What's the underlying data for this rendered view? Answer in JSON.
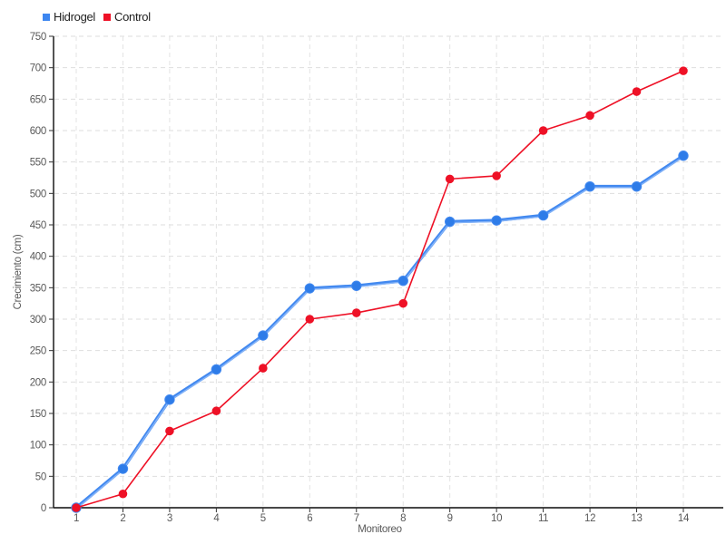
{
  "legend": {
    "items": [
      {
        "label": "Hidrogel",
        "color": "#3d86f0"
      },
      {
        "label": "Control",
        "color": "#ee1126"
      }
    ]
  },
  "chart_data": {
    "type": "line",
    "title": "",
    "x": [
      1,
      2,
      3,
      4,
      5,
      6,
      7,
      8,
      9,
      10,
      11,
      12,
      13,
      14
    ],
    "series": [
      {
        "name": "Hidrogel",
        "color": "#4289f0",
        "highlight_color": "#86b4f7",
        "point_color": "#2e7ce8",
        "line_width": 3.6,
        "point_radius": 5.2,
        "values": [
          0,
          62,
          172,
          220,
          274,
          349,
          353,
          361,
          455,
          457,
          465,
          511,
          511,
          560
        ]
      },
      {
        "name": "Control",
        "color": "#ee1126",
        "point_color": "#ee1126",
        "line_width": 1.6,
        "point_radius": 4.3,
        "values": [
          0,
          22,
          122,
          154,
          222,
          300,
          310,
          325,
          523,
          528,
          600,
          624,
          662,
          695
        ]
      }
    ],
    "xlabel": "Monitoreo",
    "ylabel": "Crecimiento (cm)",
    "ylim": [
      0,
      750
    ],
    "y_ticks": [
      0,
      50,
      100,
      150,
      200,
      250,
      300,
      350,
      400,
      450,
      500,
      550,
      600,
      650,
      700,
      750
    ],
    "grid": true,
    "grid_color": "#dedede",
    "axis_color": "#0b0b0b",
    "tick_text_color": "#595959",
    "legend_position": "top-left"
  }
}
